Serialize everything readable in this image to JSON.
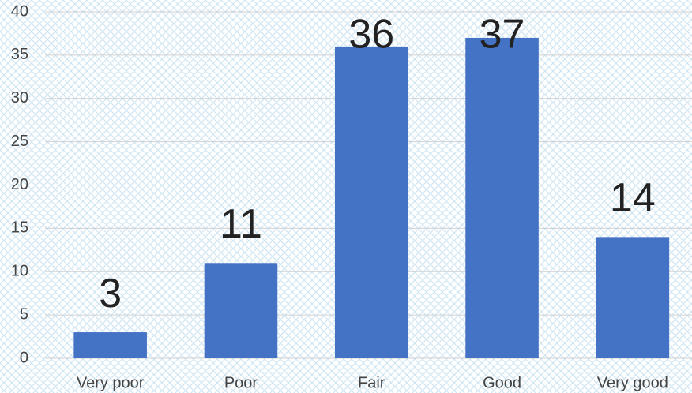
{
  "chart_data": {
    "type": "bar",
    "categories": [
      "Very poor",
      "Poor",
      "Fair",
      "Good",
      "Very good"
    ],
    "values": [
      3,
      11,
      36,
      37,
      14
    ],
    "color": "#4472c4",
    "ylim": [
      0,
      40
    ],
    "yticks": [
      0,
      5,
      10,
      15,
      20,
      25,
      30,
      35,
      40
    ],
    "grid": true
  }
}
